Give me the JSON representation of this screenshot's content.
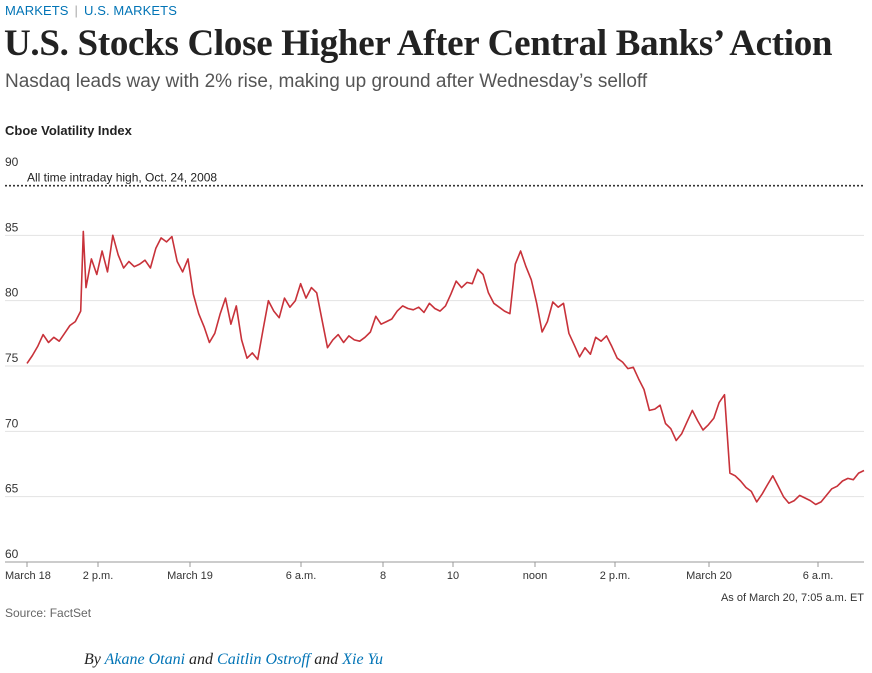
{
  "breadcrumb": {
    "section": "MARKETS",
    "subsection": "U.S. MARKETS"
  },
  "headline": "U.S. Stocks Close Higher After Central Banks’ Action",
  "dek": "Nasdaq leads way with 2% rise, making up ground after Wednesday’s selloff",
  "chart_data": {
    "type": "line",
    "title": "Cboe Volatility Index",
    "xlabel": "",
    "ylabel": "",
    "ylim": [
      60,
      90
    ],
    "yticks": [
      "90",
      "85",
      "80",
      "75",
      "70",
      "65",
      "60"
    ],
    "xticks": [
      "March 18",
      "2 p.m.",
      "March 19",
      "6 a.m.",
      "8",
      "10",
      "noon",
      "2 p.m.",
      "March 20",
      "6 a.m."
    ],
    "reference_line": {
      "value": 88.8,
      "label": "All time intraday high, Oct. 24, 2008"
    },
    "as_of": "As of March 20, 7:05 a.m. ET",
    "color": "#c8323a",
    "series": [
      {
        "values": [
          [
            0,
            75.2
          ],
          [
            1,
            75.8
          ],
          [
            2,
            76.5
          ],
          [
            3,
            77.4
          ],
          [
            4,
            76.8
          ],
          [
            5,
            77.2
          ],
          [
            6,
            76.9
          ],
          [
            7,
            77.5
          ],
          [
            8,
            78.1
          ],
          [
            9,
            78.4
          ],
          [
            10,
            79.2
          ],
          [
            10.5,
            85.3
          ],
          [
            11,
            81.0
          ],
          [
            12,
            83.2
          ],
          [
            13,
            82.0
          ],
          [
            14,
            83.8
          ],
          [
            15,
            82.2
          ],
          [
            16,
            85.0
          ],
          [
            17,
            83.5
          ],
          [
            18,
            82.5
          ],
          [
            19,
            83.0
          ],
          [
            20,
            82.6
          ],
          [
            21,
            82.8
          ],
          [
            22,
            83.1
          ],
          [
            23,
            82.5
          ],
          [
            24,
            84.0
          ],
          [
            25,
            84.8
          ],
          [
            26,
            84.5
          ],
          [
            27,
            84.9
          ],
          [
            28,
            83.0
          ],
          [
            29,
            82.2
          ],
          [
            30,
            83.2
          ],
          [
            31,
            80.5
          ],
          [
            32,
            79.0
          ],
          [
            33,
            78.0
          ],
          [
            34,
            76.8
          ],
          [
            35,
            77.5
          ],
          [
            36,
            79.0
          ],
          [
            37,
            80.2
          ],
          [
            38,
            78.2
          ],
          [
            39,
            79.6
          ],
          [
            40,
            77.0
          ],
          [
            41,
            75.6
          ],
          [
            42,
            76.0
          ],
          [
            43,
            75.5
          ],
          [
            44,
            77.8
          ],
          [
            45,
            80.0
          ],
          [
            46,
            79.2
          ],
          [
            47,
            78.7
          ],
          [
            48,
            80.2
          ],
          [
            49,
            79.5
          ],
          [
            50,
            80.0
          ],
          [
            51,
            81.3
          ],
          [
            52,
            80.2
          ],
          [
            53,
            81.0
          ],
          [
            54,
            80.6
          ],
          [
            55,
            78.5
          ],
          [
            56,
            76.4
          ],
          [
            57,
            77.0
          ],
          [
            58,
            77.4
          ],
          [
            59,
            76.8
          ],
          [
            60,
            77.3
          ],
          [
            61,
            77.0
          ],
          [
            62,
            76.9
          ],
          [
            63,
            77.2
          ],
          [
            64,
            77.6
          ],
          [
            65,
            78.8
          ],
          [
            66,
            78.2
          ],
          [
            67,
            78.4
          ],
          [
            68,
            78.6
          ],
          [
            69,
            79.2
          ],
          [
            70,
            79.6
          ],
          [
            71,
            79.4
          ],
          [
            72,
            79.3
          ],
          [
            73,
            79.5
          ],
          [
            74,
            79.1
          ],
          [
            75,
            79.8
          ],
          [
            76,
            79.4
          ],
          [
            77,
            79.2
          ],
          [
            78,
            79.6
          ],
          [
            79,
            80.5
          ],
          [
            80,
            81.5
          ],
          [
            81,
            81.0
          ],
          [
            82,
            81.4
          ],
          [
            83,
            81.3
          ],
          [
            84,
            82.4
          ],
          [
            85,
            82.0
          ],
          [
            86,
            80.6
          ],
          [
            87,
            79.8
          ],
          [
            88,
            79.5
          ],
          [
            89,
            79.2
          ],
          [
            90,
            79.0
          ],
          [
            91,
            82.8
          ],
          [
            92,
            83.8
          ],
          [
            93,
            82.6
          ],
          [
            94,
            81.6
          ],
          [
            95,
            79.8
          ],
          [
            96,
            77.6
          ],
          [
            97,
            78.4
          ],
          [
            98,
            79.9
          ],
          [
            99,
            79.5
          ],
          [
            100,
            79.8
          ],
          [
            101,
            77.5
          ],
          [
            102,
            76.6
          ],
          [
            103,
            75.7
          ],
          [
            104,
            76.4
          ],
          [
            105,
            75.9
          ],
          [
            106,
            77.2
          ],
          [
            107,
            76.9
          ],
          [
            108,
            77.3
          ],
          [
            109,
            76.5
          ],
          [
            110,
            75.6
          ],
          [
            111,
            75.3
          ],
          [
            112,
            74.8
          ],
          [
            113,
            74.9
          ],
          [
            114,
            74.0
          ],
          [
            115,
            73.2
          ],
          [
            116,
            71.6
          ],
          [
            117,
            71.7
          ],
          [
            118,
            72.0
          ],
          [
            119,
            70.6
          ],
          [
            120,
            70.2
          ],
          [
            121,
            69.3
          ],
          [
            122,
            69.8
          ],
          [
            123,
            70.7
          ],
          [
            124,
            71.6
          ],
          [
            125,
            70.8
          ],
          [
            126,
            70.1
          ],
          [
            127,
            70.5
          ],
          [
            128,
            71.0
          ],
          [
            129,
            72.2
          ],
          [
            130,
            72.8
          ],
          [
            131,
            66.8
          ],
          [
            132,
            66.6
          ],
          [
            133,
            66.2
          ],
          [
            134,
            65.7
          ],
          [
            135,
            65.4
          ],
          [
            136,
            64.6
          ],
          [
            137,
            65.2
          ],
          [
            138,
            65.9
          ],
          [
            139,
            66.6
          ],
          [
            140,
            65.8
          ],
          [
            141,
            65.0
          ],
          [
            142,
            64.5
          ],
          [
            143,
            64.7
          ],
          [
            144,
            65.1
          ],
          [
            145,
            64.9
          ],
          [
            146,
            64.7
          ],
          [
            147,
            64.4
          ],
          [
            148,
            64.6
          ],
          [
            149,
            65.1
          ],
          [
            150,
            65.6
          ],
          [
            151,
            65.8
          ],
          [
            152,
            66.2
          ],
          [
            153,
            66.4
          ],
          [
            154,
            66.3
          ],
          [
            155,
            66.8
          ],
          [
            156,
            67.0
          ]
        ]
      }
    ]
  },
  "source_note": "Source: FactSet",
  "byline": {
    "prefix": "By",
    "authors": [
      "Akane Otani",
      "Caitlin Ostroff",
      "Xie Yu"
    ],
    "conj1": "and",
    "conj2": "and"
  }
}
